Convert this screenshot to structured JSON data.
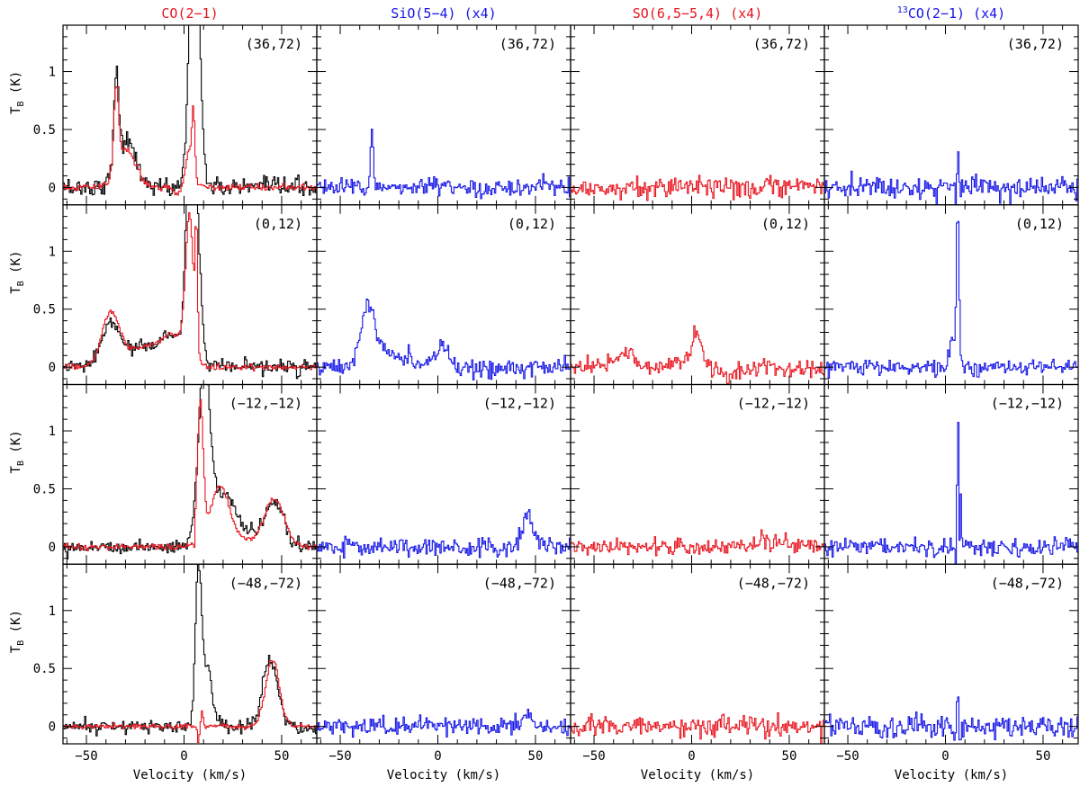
{
  "colors": {
    "red": "#e8141e",
    "blue": "#1414e6",
    "black": "#000000"
  },
  "chart_data": {
    "type": "line",
    "layout": "grid",
    "rows": 4,
    "cols": 4,
    "xlim": [
      -62,
      68
    ],
    "ylim": [
      -0.15,
      1.4
    ],
    "xticks": [
      -50,
      0,
      50
    ],
    "yticks": [
      0,
      0.5,
      1
    ],
    "xtick_labels": [
      "−50",
      "0",
      "50"
    ],
    "ytick_labels": [
      "0",
      "0.5",
      "1"
    ],
    "xlabel": "Velocity (km/s)",
    "ylabel": {
      "main": "T",
      "sub": "B",
      "unit": " (K)"
    },
    "columns": [
      {
        "title": "CO(2−1)",
        "color": "red"
      },
      {
        "title": "SiO(5−4) (x4)",
        "color": "blue"
      },
      {
        "title": "SO(6,5−5,4) (x4)",
        "color": "red"
      },
      {
        "title_sup": "13",
        "title": "CO(2−1) (x4)",
        "color": "blue"
      }
    ],
    "positions": [
      "(36,72)",
      "(0,12)",
      "(−12,−12)",
      "(−48,−72)"
    ],
    "spectra": [
      [
        {
          "series": [
            {
              "color": "black",
              "noise": 0.04,
              "comps": [
                [
                  -35,
                  0.8,
                  1.2
                ],
                [
                  -30,
                  0.4,
                  5
                ],
                [
                  5,
                  2.5,
                  2.5
                ]
              ]
            },
            {
              "color": "red",
              "noise": 0.015,
              "comps": [
                [
                  -35,
                  0.7,
                  1.2
                ],
                [
                  -30,
                  0.32,
                  5
                ],
                [
                  2.5,
                  0.35,
                  2.2
                ],
                [
                  4.5,
                  0.5,
                  0.7
                ],
                [
                  -2,
                  -0.07,
                  3
                ]
              ]
            }
          ]
        },
        {
          "series": [
            {
              "color": "blue",
              "noise": 0.04,
              "comps": [
                [
                  -34,
                  0.48,
                  0.8
                ]
              ]
            }
          ]
        },
        {
          "series": [
            {
              "color": "red",
              "noise": 0.045,
              "comps": []
            }
          ]
        },
        {
          "series": [
            {
              "color": "blue",
              "noise": 0.05,
              "comps": [
                [
                  6,
                  0.3,
                  0.4
                ],
                [
                  5,
                  -0.12,
                  0.3
                ]
              ]
            }
          ]
        }
      ],
      [
        {
          "series": [
            {
              "color": "black",
              "noise": 0.03,
              "comps": [
                [
                  -38,
                  0.33,
                  4.5
                ],
                [
                  -20,
                  0.17,
                  12
                ],
                [
                  -5,
                  0.2,
                  6
                ],
                [
                  2.5,
                  1.2,
                  2
                ],
                [
                  5,
                  1.6,
                  2.5
                ]
              ]
            },
            {
              "color": "red",
              "noise": 0.012,
              "comps": [
                [
                  -38,
                  0.42,
                  4.5
                ],
                [
                  -20,
                  0.17,
                  12
                ],
                [
                  -5,
                  0.2,
                  6
                ],
                [
                  2.5,
                  1.2,
                  2
                ],
                [
                  6,
                  1.0,
                  0.6
                ]
              ]
            }
          ]
        },
        {
          "series": [
            {
              "color": "blue",
              "noise": 0.04,
              "comps": [
                [
                  -36,
                  0.52,
                  3.5
                ],
                [
                  -25,
                  0.12,
                  8
                ],
                [
                  2,
                  0.18,
                  3
                ]
              ]
            }
          ]
        },
        {
          "series": [
            {
              "color": "red",
              "noise": 0.04,
              "comps": [
                [
                  -35,
                  0.12,
                  5
                ],
                [
                  2,
                  0.3,
                  2.5
                ],
                [
                  -8,
                  0.05,
                  5
                ],
                [
                  18,
                  -0.05,
                  5
                ]
              ]
            }
          ]
        },
        {
          "series": [
            {
              "color": "blue",
              "noise": 0.035,
              "comps": [
                [
                  6,
                  1.38,
                  0.7
                ],
                [
                  3,
                  0.2,
                  1.5
                ]
              ]
            }
          ]
        }
      ],
      [
        {
          "series": [
            {
              "color": "black",
              "noise": 0.03,
              "comps": [
                [
                  10,
                  1.5,
                  3
                ],
                [
                  20,
                  0.4,
                  6
                ],
                [
                  46,
                  0.35,
                  5
                ],
                [
                  30,
                  0.08,
                  10
                ]
              ]
            },
            {
              "color": "red",
              "noise": 0.012,
              "comps": [
                [
                  8,
                  1.2,
                  1.5
                ],
                [
                  18,
                  0.5,
                  5
                ],
                [
                  46,
                  0.4,
                  5
                ],
                [
                  30,
                  0.05,
                  10
                ],
                [
                  5,
                  -0.15,
                  0.5
                ]
              ]
            }
          ]
        },
        {
          "series": [
            {
              "color": "blue",
              "noise": 0.04,
              "comps": [
                [
                  46,
                  0.27,
                  3
                ]
              ]
            }
          ]
        },
        {
          "series": [
            {
              "color": "red",
              "noise": 0.04,
              "comps": [
                [
                  40,
                  0.05,
                  8
                ]
              ]
            }
          ]
        },
        {
          "series": [
            {
              "color": "blue",
              "noise": 0.04,
              "comps": [
                [
                  6,
                  1.4,
                  0.3
                ],
                [
                  7.5,
                  0.5,
                  0.3
                ],
                [
                  5,
                  -0.2,
                  0.3
                ]
              ]
            }
          ]
        }
      ],
      [
        {
          "series": [
            {
              "color": "black",
              "noise": 0.03,
              "comps": [
                [
                  7,
                  1.2,
                  1.5
                ],
                [
                  11,
                  0.5,
                  3
                ],
                [
                  44,
                  0.55,
                  4
                ]
              ]
            },
            {
              "color": "red",
              "noise": 0.012,
              "comps": [
                [
                  45,
                  0.58,
                  3.5
                ],
                [
                  7,
                  -0.13,
                  0.5
                ],
                [
                  9,
                  0.12,
                  0.5
                ]
              ]
            }
          ]
        },
        {
          "series": [
            {
              "color": "blue",
              "noise": 0.04,
              "comps": [
                [
                  45,
                  0.1,
                  2
                ]
              ]
            }
          ]
        },
        {
          "series": [
            {
              "color": "red",
              "noise": 0.045,
              "comps": []
            }
          ]
        },
        {
          "series": [
            {
              "color": "blue",
              "noise": 0.05,
              "comps": [
                [
                  6,
                  0.5,
                  0.35
                ],
                [
                  7,
                  -0.15,
                  0.3
                ]
              ]
            }
          ]
        }
      ]
    ]
  }
}
